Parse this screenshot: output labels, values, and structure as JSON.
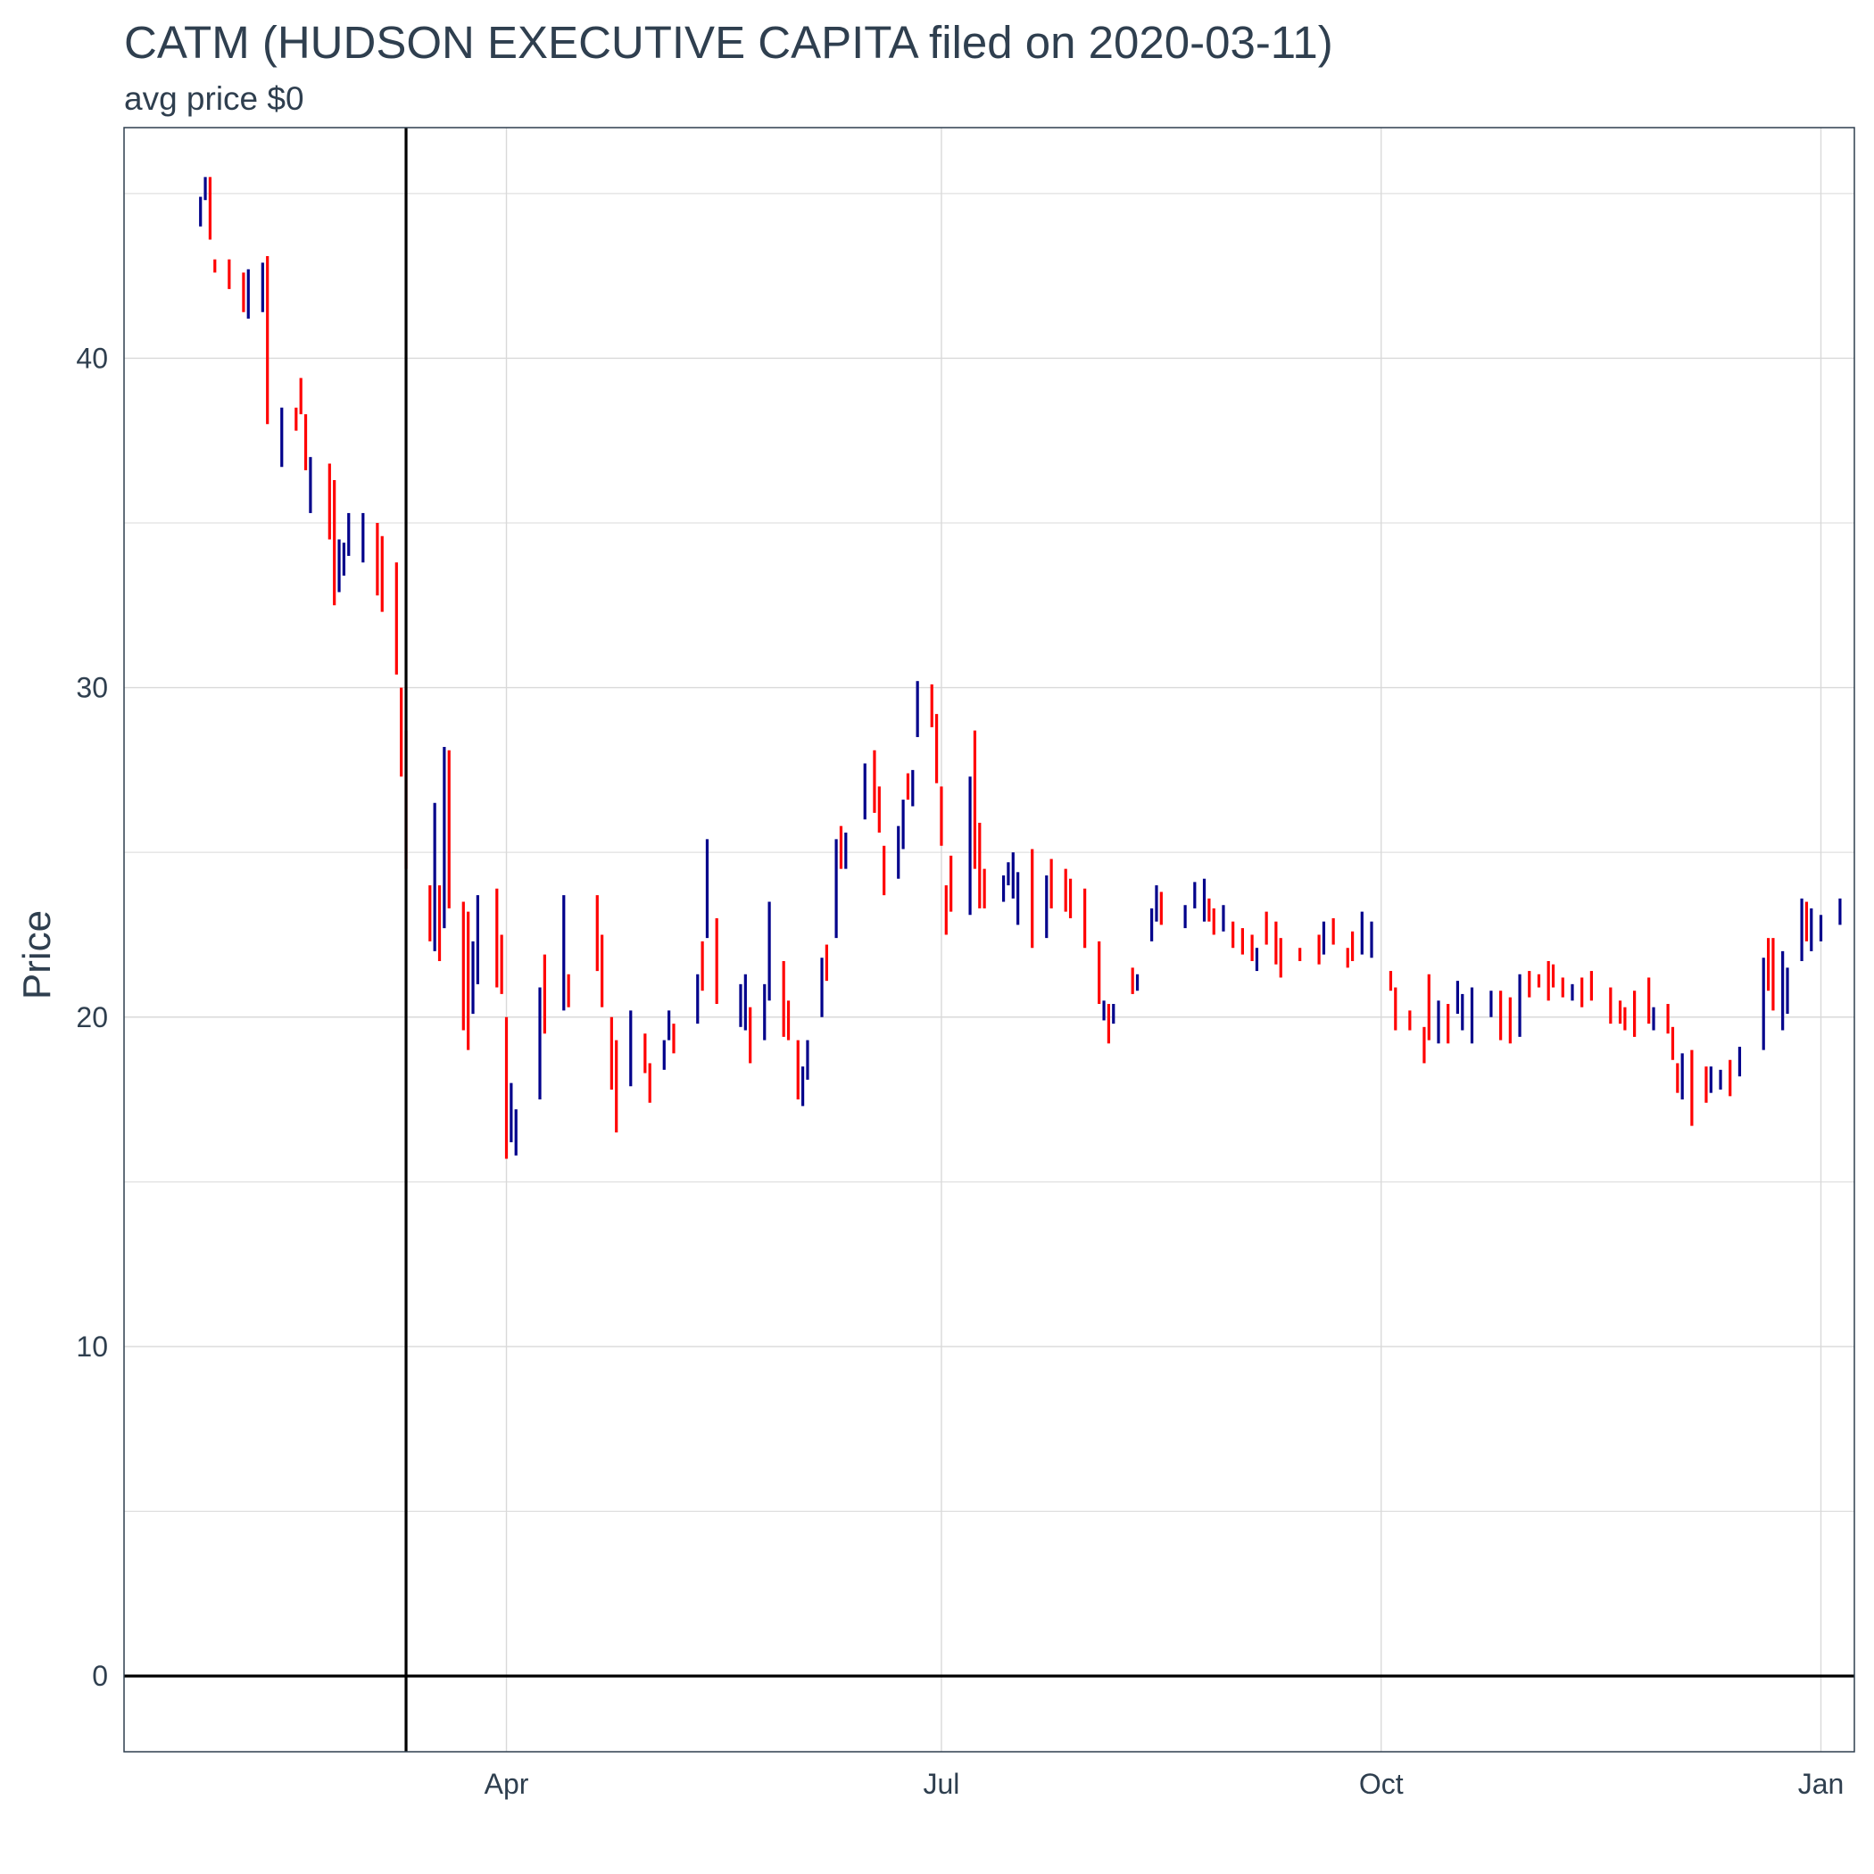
{
  "chart_data": {
    "type": "ohlc",
    "title": "CATM (HUDSON EXECUTIVE CAPITA filed on 2020-03-11)",
    "subtitle": "avg price $0",
    "ylabel": "Price",
    "xlabel": "",
    "xlim": [
      "2020-01-12",
      "2021-01-08"
    ],
    "ylim": [
      -2.3,
      47
    ],
    "y_ticks": [
      0,
      10,
      20,
      30,
      40
    ],
    "y_minor_ticks": [
      5,
      15,
      25,
      35,
      45
    ],
    "x_ticks": [
      {
        "date": "2020-04-01",
        "label": "Apr"
      },
      {
        "date": "2020-07-01",
        "label": "Jul"
      },
      {
        "date": "2020-10-01",
        "label": "Oct"
      },
      {
        "date": "2021-01-01",
        "label": "Jan"
      }
    ],
    "reference_lines": {
      "vertical_date": "2020-03-11",
      "horizontal_value": 0
    },
    "grid": true,
    "colors": {
      "up": "#00008b",
      "down": "#ff0000",
      "grid": "#d9d9d9",
      "frame": "#2f3f4f",
      "text": "#2f3f4f"
    },
    "days": [
      [
        "2020-01-28",
        44.9,
        44.0,
        "up"
      ],
      [
        "2020-01-29",
        45.5,
        44.8,
        "up"
      ],
      [
        "2020-01-30",
        45.5,
        43.6,
        "down"
      ],
      [
        "2020-01-31",
        43.0,
        42.6,
        "down"
      ],
      [
        "2020-02-03",
        43.0,
        42.1,
        "down"
      ],
      [
        "2020-02-06",
        42.6,
        41.4,
        "down"
      ],
      [
        "2020-02-07",
        42.7,
        41.2,
        "up"
      ],
      [
        "2020-02-10",
        42.9,
        41.4,
        "up"
      ],
      [
        "2020-02-11",
        43.1,
        38.0,
        "down"
      ],
      [
        "2020-02-14",
        38.5,
        36.7,
        "up"
      ],
      [
        "2020-02-17",
        38.5,
        37.8,
        "down"
      ],
      [
        "2020-02-18",
        39.4,
        38.3,
        "down"
      ],
      [
        "2020-02-19",
        38.3,
        36.6,
        "down"
      ],
      [
        "2020-02-20",
        37.0,
        35.3,
        "up"
      ],
      [
        "2020-02-24",
        36.8,
        34.5,
        "down"
      ],
      [
        "2020-02-25",
        36.3,
        32.5,
        "down"
      ],
      [
        "2020-02-26",
        34.5,
        32.9,
        "up"
      ],
      [
        "2020-02-27",
        34.4,
        33.4,
        "up"
      ],
      [
        "2020-02-28",
        35.3,
        34.0,
        "up"
      ],
      [
        "2020-03-02",
        35.3,
        33.8,
        "up"
      ],
      [
        "2020-03-05",
        35.0,
        32.8,
        "down"
      ],
      [
        "2020-03-06",
        34.6,
        32.3,
        "down"
      ],
      [
        "2020-03-09",
        33.8,
        30.4,
        "down"
      ],
      [
        "2020-03-10",
        30.0,
        27.3,
        "down"
      ],
      [
        "2020-03-11",
        28.7,
        24.5,
        "down"
      ],
      [
        "2020-03-16",
        24.0,
        22.3,
        "down"
      ],
      [
        "2020-03-17",
        26.5,
        22.0,
        "up"
      ],
      [
        "2020-03-18",
        24.0,
        21.7,
        "down"
      ],
      [
        "2020-03-19",
        28.2,
        22.7,
        "up"
      ],
      [
        "2020-03-20",
        28.1,
        23.3,
        "down"
      ],
      [
        "2020-03-23",
        23.5,
        19.6,
        "down"
      ],
      [
        "2020-03-24",
        23.2,
        19.0,
        "down"
      ],
      [
        "2020-03-25",
        22.3,
        20.1,
        "up"
      ],
      [
        "2020-03-26",
        23.7,
        21.0,
        "up"
      ],
      [
        "2020-03-30",
        23.9,
        20.9,
        "down"
      ],
      [
        "2020-03-31",
        22.5,
        20.7,
        "down"
      ],
      [
        "2020-04-01",
        20.0,
        15.7,
        "down"
      ],
      [
        "2020-04-02",
        18.0,
        16.2,
        "up"
      ],
      [
        "2020-04-03",
        17.2,
        15.8,
        "up"
      ],
      [
        "2020-04-08",
        20.9,
        17.5,
        "up"
      ],
      [
        "2020-04-09",
        21.9,
        19.5,
        "down"
      ],
      [
        "2020-04-13",
        23.7,
        20.2,
        "up"
      ],
      [
        "2020-04-14",
        21.3,
        20.3,
        "down"
      ],
      [
        "2020-04-20",
        23.7,
        21.4,
        "down"
      ],
      [
        "2020-04-21",
        22.5,
        20.3,
        "down"
      ],
      [
        "2020-04-23",
        20.0,
        17.8,
        "down"
      ],
      [
        "2020-04-24",
        19.3,
        16.5,
        "down"
      ],
      [
        "2020-04-27",
        20.2,
        17.9,
        "up"
      ],
      [
        "2020-04-30",
        19.5,
        18.3,
        "down"
      ],
      [
        "2020-05-01",
        18.6,
        17.4,
        "down"
      ],
      [
        "2020-05-04",
        19.3,
        18.4,
        "up"
      ],
      [
        "2020-05-05",
        20.2,
        19.3,
        "up"
      ],
      [
        "2020-05-06",
        19.8,
        18.9,
        "down"
      ],
      [
        "2020-05-11",
        21.3,
        19.8,
        "up"
      ],
      [
        "2020-05-12",
        22.3,
        20.8,
        "down"
      ],
      [
        "2020-05-13",
        25.4,
        22.4,
        "up"
      ],
      [
        "2020-05-15",
        23.0,
        20.4,
        "down"
      ],
      [
        "2020-05-20",
        21.0,
        19.7,
        "up"
      ],
      [
        "2020-05-21",
        21.3,
        19.6,
        "up"
      ],
      [
        "2020-05-22",
        20.3,
        18.6,
        "down"
      ],
      [
        "2020-05-25",
        21.0,
        19.3,
        "up"
      ],
      [
        "2020-05-26",
        23.5,
        20.5,
        "up"
      ],
      [
        "2020-05-29",
        21.7,
        19.4,
        "down"
      ],
      [
        "2020-05-30",
        20.5,
        19.3,
        "down"
      ],
      [
        "2020-06-01",
        19.3,
        17.5,
        "down"
      ],
      [
        "2020-06-02",
        18.5,
        17.3,
        "up"
      ],
      [
        "2020-06-03",
        19.3,
        18.1,
        "up"
      ],
      [
        "2020-06-06",
        21.8,
        20.0,
        "up"
      ],
      [
        "2020-06-07",
        22.2,
        21.1,
        "down"
      ],
      [
        "2020-06-09",
        25.4,
        22.4,
        "up"
      ],
      [
        "2020-06-10",
        25.8,
        24.5,
        "down"
      ],
      [
        "2020-06-11",
        25.6,
        24.5,
        "up"
      ],
      [
        "2020-06-15",
        27.7,
        26.0,
        "up"
      ],
      [
        "2020-06-17",
        28.1,
        26.2,
        "down"
      ],
      [
        "2020-06-18",
        27.0,
        25.6,
        "down"
      ],
      [
        "2020-06-19",
        25.2,
        23.7,
        "down"
      ],
      [
        "2020-06-22",
        25.8,
        24.2,
        "up"
      ],
      [
        "2020-06-23",
        26.6,
        25.1,
        "up"
      ],
      [
        "2020-06-24",
        27.4,
        26.6,
        "down"
      ],
      [
        "2020-06-25",
        27.5,
        26.4,
        "up"
      ],
      [
        "2020-06-26",
        30.2,
        28.5,
        "up"
      ],
      [
        "2020-06-29",
        30.1,
        28.8,
        "down"
      ],
      [
        "2020-06-30",
        29.2,
        27.1,
        "down"
      ],
      [
        "2020-07-01",
        27.0,
        25.2,
        "down"
      ],
      [
        "2020-07-02",
        24.0,
        22.5,
        "down"
      ],
      [
        "2020-07-03",
        24.9,
        23.2,
        "down"
      ],
      [
        "2020-07-07",
        27.3,
        23.1,
        "up"
      ],
      [
        "2020-07-08",
        28.7,
        24.5,
        "down"
      ],
      [
        "2020-07-09",
        25.9,
        23.3,
        "down"
      ],
      [
        "2020-07-10",
        24.5,
        23.3,
        "down"
      ],
      [
        "2020-07-14",
        24.3,
        23.5,
        "up"
      ],
      [
        "2020-07-15",
        24.7,
        24.0,
        "up"
      ],
      [
        "2020-07-16",
        25.0,
        23.6,
        "up"
      ],
      [
        "2020-07-17",
        24.4,
        22.8,
        "up"
      ],
      [
        "2020-07-20",
        25.1,
        22.1,
        "down"
      ],
      [
        "2020-07-23",
        24.3,
        22.4,
        "up"
      ],
      [
        "2020-07-24",
        24.8,
        23.3,
        "down"
      ],
      [
        "2020-07-27",
        24.5,
        23.2,
        "down"
      ],
      [
        "2020-07-28",
        24.2,
        23.0,
        "down"
      ],
      [
        "2020-07-31",
        23.9,
        22.1,
        "down"
      ],
      [
        "2020-08-03",
        22.3,
        20.4,
        "down"
      ],
      [
        "2020-08-04",
        20.5,
        19.9,
        "up"
      ],
      [
        "2020-08-05",
        20.4,
        19.2,
        "down"
      ],
      [
        "2020-08-06",
        20.4,
        19.8,
        "up"
      ],
      [
        "2020-08-10",
        21.5,
        20.7,
        "down"
      ],
      [
        "2020-08-11",
        21.3,
        20.8,
        "up"
      ],
      [
        "2020-08-14",
        23.3,
        22.3,
        "up"
      ],
      [
        "2020-08-15",
        24.0,
        22.9,
        "up"
      ],
      [
        "2020-08-16",
        23.8,
        22.8,
        "down"
      ],
      [
        "2020-08-21",
        23.4,
        22.7,
        "up"
      ],
      [
        "2020-08-23",
        24.1,
        23.3,
        "up"
      ],
      [
        "2020-08-25",
        24.2,
        22.9,
        "up"
      ],
      [
        "2020-08-26",
        23.6,
        22.9,
        "down"
      ],
      [
        "2020-08-27",
        23.3,
        22.5,
        "down"
      ],
      [
        "2020-08-29",
        23.4,
        22.6,
        "up"
      ],
      [
        "2020-08-31",
        22.9,
        22.1,
        "down"
      ],
      [
        "2020-09-02",
        22.7,
        21.9,
        "down"
      ],
      [
        "2020-09-04",
        22.5,
        21.7,
        "down"
      ],
      [
        "2020-09-05",
        22.1,
        21.4,
        "up"
      ],
      [
        "2020-09-07",
        23.2,
        22.2,
        "down"
      ],
      [
        "2020-09-09",
        22.9,
        21.6,
        "down"
      ],
      [
        "2020-09-10",
        22.4,
        21.2,
        "down"
      ],
      [
        "2020-09-14",
        22.1,
        21.7,
        "down"
      ],
      [
        "2020-09-18",
        22.5,
        21.6,
        "down"
      ],
      [
        "2020-09-19",
        22.9,
        21.9,
        "up"
      ],
      [
        "2020-09-21",
        23.0,
        22.2,
        "down"
      ],
      [
        "2020-09-24",
        22.1,
        21.5,
        "down"
      ],
      [
        "2020-09-25",
        22.6,
        21.7,
        "down"
      ],
      [
        "2020-09-27",
        23.2,
        21.9,
        "up"
      ],
      [
        "2020-09-29",
        22.9,
        21.8,
        "up"
      ],
      [
        "2020-10-03",
        21.4,
        20.8,
        "down"
      ],
      [
        "2020-10-04",
        20.9,
        19.6,
        "down"
      ],
      [
        "2020-10-07",
        20.2,
        19.6,
        "down"
      ],
      [
        "2020-10-10",
        19.7,
        18.6,
        "down"
      ],
      [
        "2020-10-11",
        21.3,
        19.3,
        "down"
      ],
      [
        "2020-10-13",
        20.5,
        19.2,
        "up"
      ],
      [
        "2020-10-15",
        20.4,
        19.2,
        "down"
      ],
      [
        "2020-10-17",
        21.1,
        20.1,
        "up"
      ],
      [
        "2020-10-18",
        20.7,
        19.6,
        "up"
      ],
      [
        "2020-10-20",
        20.9,
        19.2,
        "up"
      ],
      [
        "2020-10-24",
        20.8,
        20.0,
        "up"
      ],
      [
        "2020-10-26",
        20.8,
        19.3,
        "down"
      ],
      [
        "2020-10-28",
        20.6,
        19.2,
        "down"
      ],
      [
        "2020-10-30",
        21.3,
        19.4,
        "up"
      ],
      [
        "2020-11-01",
        21.4,
        20.6,
        "down"
      ],
      [
        "2020-11-03",
        21.3,
        20.9,
        "down"
      ],
      [
        "2020-11-05",
        21.7,
        20.5,
        "down"
      ],
      [
        "2020-11-06",
        21.6,
        20.9,
        "down"
      ],
      [
        "2020-11-08",
        21.2,
        20.6,
        "down"
      ],
      [
        "2020-11-10",
        21.0,
        20.5,
        "up"
      ],
      [
        "2020-11-12",
        21.2,
        20.3,
        "down"
      ],
      [
        "2020-11-14",
        21.4,
        20.5,
        "down"
      ],
      [
        "2020-11-18",
        20.9,
        19.8,
        "down"
      ],
      [
        "2020-11-20",
        20.5,
        19.8,
        "down"
      ],
      [
        "2020-11-21",
        20.3,
        19.6,
        "down"
      ],
      [
        "2020-11-23",
        20.8,
        19.4,
        "down"
      ],
      [
        "2020-11-26",
        21.2,
        19.8,
        "down"
      ],
      [
        "2020-11-27",
        20.3,
        19.6,
        "up"
      ],
      [
        "2020-11-30",
        20.4,
        19.5,
        "down"
      ],
      [
        "2020-12-01",
        19.7,
        18.7,
        "down"
      ],
      [
        "2020-12-02",
        18.6,
        17.7,
        "down"
      ],
      [
        "2020-12-03",
        18.9,
        17.5,
        "up"
      ],
      [
        "2020-12-05",
        19.0,
        16.7,
        "down"
      ],
      [
        "2020-12-08",
        18.5,
        17.4,
        "down"
      ],
      [
        "2020-12-09",
        18.5,
        17.7,
        "up"
      ],
      [
        "2020-12-11",
        18.4,
        17.8,
        "up"
      ],
      [
        "2020-12-13",
        18.7,
        17.6,
        "down"
      ],
      [
        "2020-12-15",
        19.1,
        18.2,
        "up"
      ],
      [
        "2020-12-20",
        21.8,
        19.0,
        "up"
      ],
      [
        "2020-12-21",
        22.4,
        20.8,
        "down"
      ],
      [
        "2020-12-22",
        22.4,
        20.2,
        "down"
      ],
      [
        "2020-12-24",
        22.0,
        19.6,
        "up"
      ],
      [
        "2020-12-25",
        21.5,
        20.1,
        "up"
      ],
      [
        "2020-12-28",
        23.6,
        21.7,
        "up"
      ],
      [
        "2020-12-29",
        23.5,
        22.3,
        "down"
      ],
      [
        "2020-12-30",
        23.3,
        22.0,
        "up"
      ],
      [
        "2021-01-01",
        23.1,
        22.3,
        "up"
      ],
      [
        "2021-01-05",
        23.6,
        22.8,
        "up"
      ]
    ]
  }
}
